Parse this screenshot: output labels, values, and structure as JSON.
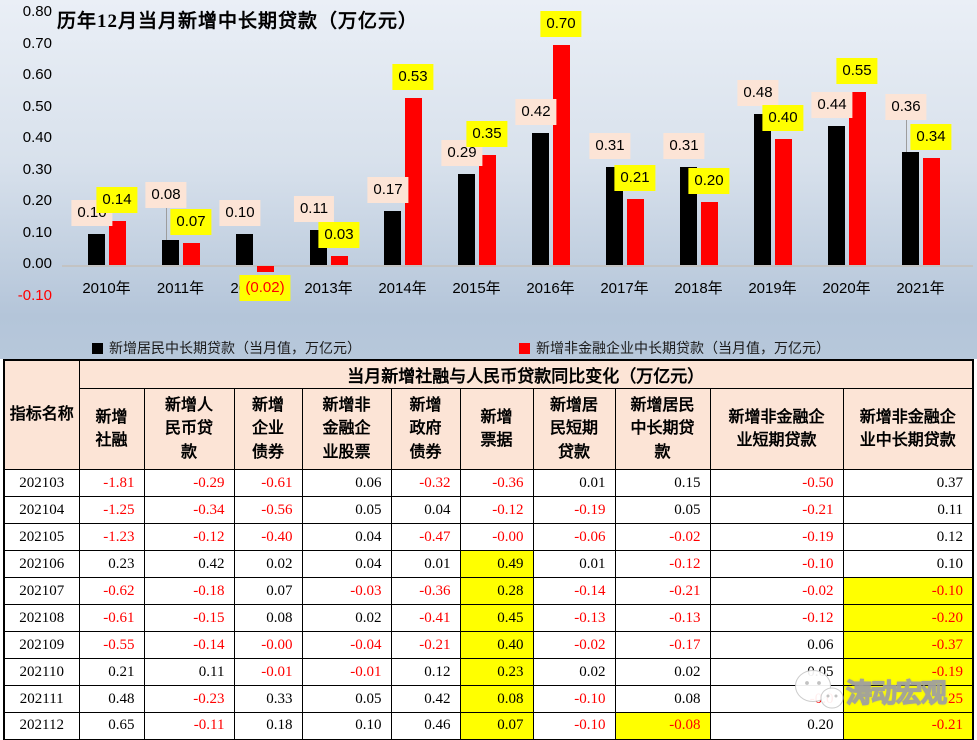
{
  "chart_data": {
    "type": "bar",
    "title": "历年12月当月新增中长期贷款（万亿元）",
    "categories": [
      "2010年",
      "2011年",
      "2012年",
      "2013年",
      "2014年",
      "2015年",
      "2016年",
      "2017年",
      "2018年",
      "2019年",
      "2020年",
      "2021年"
    ],
    "series": [
      {
        "name": "新增居民中长期贷款（当月值，万亿元）",
        "color": "#000000",
        "label_bg": "#fce4d6",
        "label_color": "#000000",
        "values": [
          0.1,
          0.08,
          0.1,
          0.11,
          0.17,
          0.29,
          0.42,
          0.31,
          0.31,
          0.48,
          0.44,
          0.36
        ],
        "labels": [
          "0.10",
          "0.08",
          "0.10",
          "0.11",
          "0.17",
          "0.29",
          "0.42",
          "0.31",
          "0.31",
          "0.48",
          "0.44",
          "0.36"
        ]
      },
      {
        "name": "新增非金融企业中长期贷款（当月值，万亿元）",
        "color": "#ff0000",
        "label_bg": "#ffff00",
        "label_color": "#000000",
        "negative_label_color": "#ff0000",
        "values": [
          0.14,
          0.07,
          -0.02,
          0.03,
          0.53,
          0.35,
          0.7,
          0.21,
          0.2,
          0.4,
          0.55,
          0.34
        ],
        "labels": [
          "0.14",
          "0.07",
          "(0.02)",
          "0.03",
          "0.53",
          "0.35",
          "0.70",
          "0.21",
          "0.20",
          "0.40",
          "0.55",
          "0.34"
        ]
      }
    ],
    "ylim": [
      -0.1,
      0.8
    ],
    "y_ticks": [
      "0.80",
      "0.70",
      "0.60",
      "0.50",
      "0.40",
      "0.30",
      "0.20",
      "0.10",
      "0.00",
      "-0.10"
    ],
    "grid": false,
    "legend_position": "bottom"
  },
  "table": {
    "corner_label": "指标名称",
    "group_header": "当月新增社融与人民币贷款同比变化（万亿元）",
    "columns": [
      "新增社融",
      "新增人民币贷款",
      "新增企业债券",
      "新增非金融企业股票",
      "新增政府债券",
      "新增票据",
      "新增居民短期贷款",
      "新增居民中长期贷款",
      "新增非金融企业短期贷款",
      "新增非金融企业中长期贷款"
    ],
    "rows": [
      {
        "label": "202103",
        "values": [
          "-1.81",
          "-0.29",
          "-0.61",
          "0.06",
          "-0.32",
          "-0.36",
          "0.01",
          "0.15",
          "-0.50",
          "0.37"
        ]
      },
      {
        "label": "202104",
        "values": [
          "-1.25",
          "-0.34",
          "-0.56",
          "0.05",
          "0.04",
          "-0.12",
          "-0.19",
          "0.05",
          "-0.21",
          "0.11"
        ]
      },
      {
        "label": "202105",
        "values": [
          "-1.23",
          "-0.12",
          "-0.40",
          "0.04",
          "-0.47",
          "-0.00",
          "-0.06",
          "-0.02",
          "-0.19",
          "0.12"
        ]
      },
      {
        "label": "202106",
        "values": [
          "0.23",
          "0.42",
          "0.02",
          "0.04",
          "0.01",
          "0.49",
          "0.01",
          "-0.12",
          "-0.10",
          "0.10"
        ]
      },
      {
        "label": "202107",
        "values": [
          "-0.62",
          "-0.18",
          "0.07",
          "-0.03",
          "-0.36",
          "0.28",
          "-0.14",
          "-0.21",
          "-0.02",
          "-0.10"
        ]
      },
      {
        "label": "202108",
        "values": [
          "-0.61",
          "-0.15",
          "0.08",
          "0.02",
          "-0.41",
          "0.45",
          "-0.13",
          "-0.13",
          "-0.12",
          "-0.20"
        ]
      },
      {
        "label": "202109",
        "values": [
          "-0.55",
          "-0.14",
          "-0.00",
          "-0.04",
          "-0.21",
          "0.40",
          "-0.02",
          "-0.17",
          "0.06",
          "-0.37"
        ]
      },
      {
        "label": "202110",
        "values": [
          "0.21",
          "0.11",
          "-0.01",
          "-0.01",
          "0.12",
          "0.23",
          "0.02",
          "0.02",
          "0.05",
          "-0.19"
        ]
      },
      {
        "label": "202111",
        "values": [
          "0.48",
          "-0.23",
          "0.33",
          "0.05",
          "0.42",
          "0.08",
          "-0.10",
          "0.08",
          "-0.0",
          "25"
        ]
      },
      {
        "label": "202112",
        "values": [
          "0.65",
          "-0.11",
          "0.18",
          "0.10",
          "0.46",
          "0.07",
          "-0.10",
          "-0.08",
          "0.20",
          "-0.21"
        ]
      }
    ],
    "yellow_cells": [
      [
        3,
        5
      ],
      [
        4,
        5
      ],
      [
        5,
        5
      ],
      [
        6,
        5
      ],
      [
        7,
        5
      ],
      [
        8,
        5
      ],
      [
        9,
        5
      ],
      [
        4,
        9
      ],
      [
        5,
        9
      ],
      [
        6,
        9
      ],
      [
        7,
        9
      ],
      [
        8,
        9
      ],
      [
        9,
        9
      ],
      [
        9,
        7
      ]
    ],
    "red_override_cells": [
      [
        8,
        9
      ]
    ],
    "colors": {
      "negative": "#ff0000",
      "highlight": "#ffff00",
      "header_bg": "#fce4d6"
    }
  },
  "watermark": {
    "text": "涛动宏观"
  }
}
